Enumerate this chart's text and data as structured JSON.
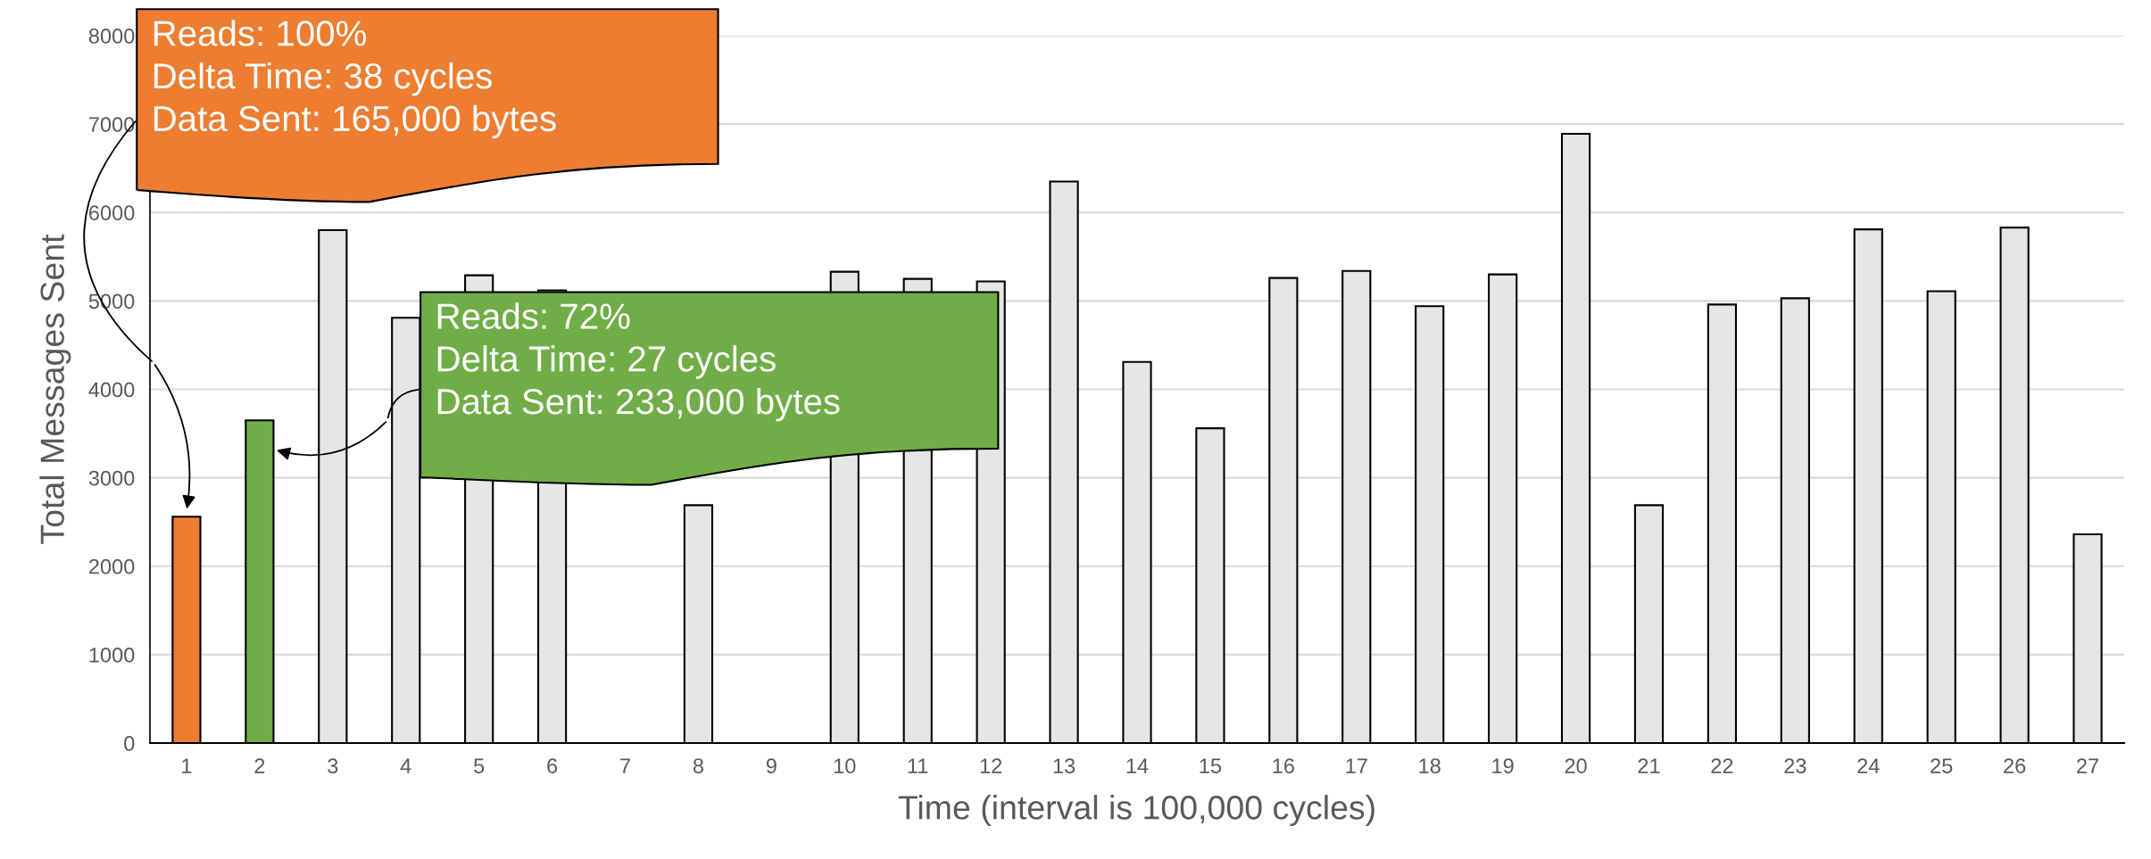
{
  "chart_data": {
    "type": "bar",
    "xlabel": "Time (interval is 100,000 cycles)",
    "ylabel": "Total Messages Sent",
    "categories": [
      "1",
      "2",
      "3",
      "4",
      "5",
      "6",
      "7",
      "8",
      "9",
      "10",
      "11",
      "12",
      "13",
      "14",
      "15",
      "16",
      "17",
      "18",
      "19",
      "20",
      "21",
      "22",
      "23",
      "24",
      "25",
      "26",
      "27"
    ],
    "values": [
      2560,
      3650,
      5800,
      4810,
      5290,
      5120,
      null,
      2690,
      null,
      5330,
      5250,
      5220,
      6350,
      4310,
      3560,
      5260,
      5340,
      4940,
      5300,
      6890,
      2690,
      4960,
      5030,
      5810,
      5110,
      5830,
      2360
    ],
    "colors": [
      "#ed7d31",
      "#70ad47",
      "#e7e6e6",
      "#e7e6e6",
      "#e7e6e6",
      "#e7e6e6",
      "#e7e6e6",
      "#e7e6e6",
      "#e7e6e6",
      "#e7e6e6",
      "#e7e6e6",
      "#e7e6e6",
      "#e7e6e6",
      "#e7e6e6",
      "#e7e6e6",
      "#e7e6e6",
      "#e7e6e6",
      "#e7e6e6",
      "#e7e6e6",
      "#e7e6e6",
      "#e7e6e6",
      "#e7e6e6",
      "#e7e6e6",
      "#e7e6e6",
      "#e7e6e6",
      "#e7e6e6",
      "#e7e6e6"
    ],
    "ylim": [
      0,
      8000
    ],
    "yticks": [
      0,
      1000,
      2000,
      3000,
      4000,
      5000,
      6000,
      7000,
      8000
    ],
    "grid": "y",
    "legend": false,
    "annotations": [
      "Reads: 100%\nDelta Time: 38 cycles\nData Sent: 165,000 bytes",
      "Reads: 72%\nDelta Time: 27 cycles\nData Sent: 233,000 bytes"
    ]
  }
}
